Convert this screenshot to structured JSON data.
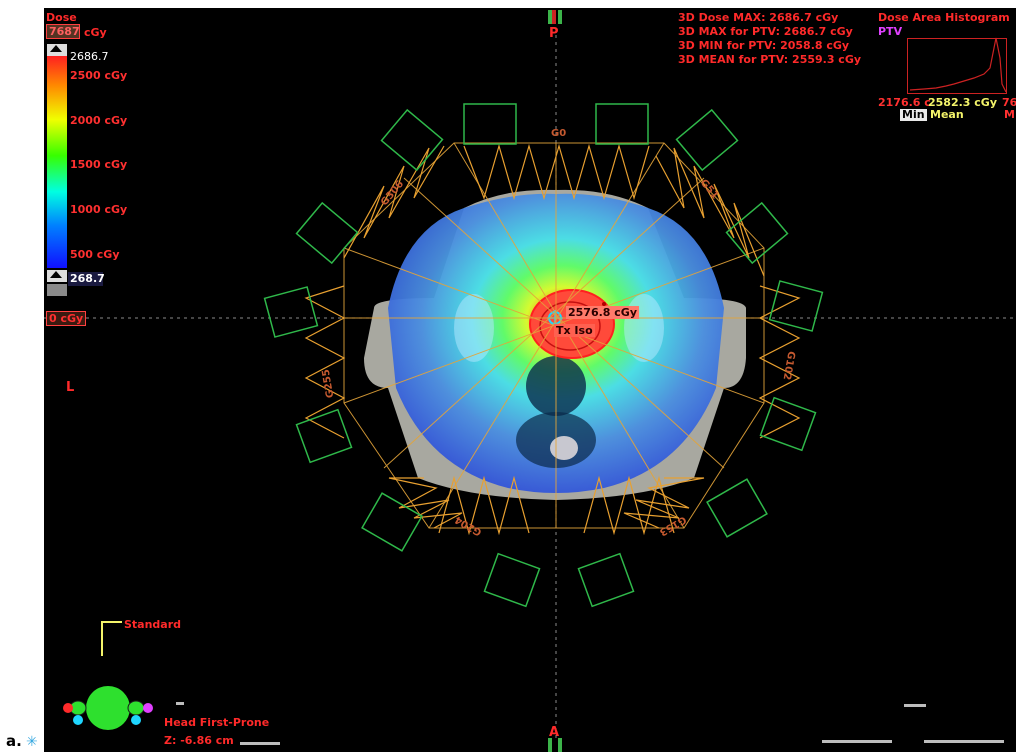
{
  "figure_label": "a.",
  "colorbar": {
    "title": "Dose",
    "entry_value": "7687",
    "entry_unit": "cGy",
    "max_value": "2686.7",
    "ticks": [
      "2500 cGy",
      "2000 cGy",
      "1500 cGy",
      "1000 cGy",
      "500 cGy"
    ],
    "min_value": "268.7",
    "crosshair_label": "0 cGy"
  },
  "stats": {
    "dose_max": "3D Dose MAX: 2686.7 cGy",
    "ptv_max": "3D MAX for PTV: 2686.7 cGy",
    "ptv_min": "3D MIN for PTV: 2058.8 cGy",
    "ptv_mean": "3D MEAN for PTV: 2559.3 cGy"
  },
  "histogram": {
    "title": "Dose Area Histogram",
    "structure": "PTV",
    "min_value": "2176.6 c",
    "mean_value": "2582.3 cGy",
    "max_value_partial": "76",
    "min_label": "Min",
    "mean_label": "Mean",
    "max_label_partial": "M"
  },
  "orientation": {
    "top": "P",
    "bottom": "A",
    "left": "L"
  },
  "beams": [
    "G0",
    "G51",
    "G102",
    "G153",
    "G204",
    "G255",
    "G306"
  ],
  "point_dose": "2576.8 cGy",
  "isocenter_label": "Tx Iso",
  "patient_orientation": {
    "view_label": "Standard",
    "position": "Head First-Prone",
    "slice": "Z: -6.86 cm"
  },
  "colors": {
    "label_red": "#ff2a2a",
    "beam_orange": "#e3a43a",
    "collimator_green": "#2fb84a",
    "magenta": "#e040ff",
    "yellow": "#f3f36a"
  }
}
